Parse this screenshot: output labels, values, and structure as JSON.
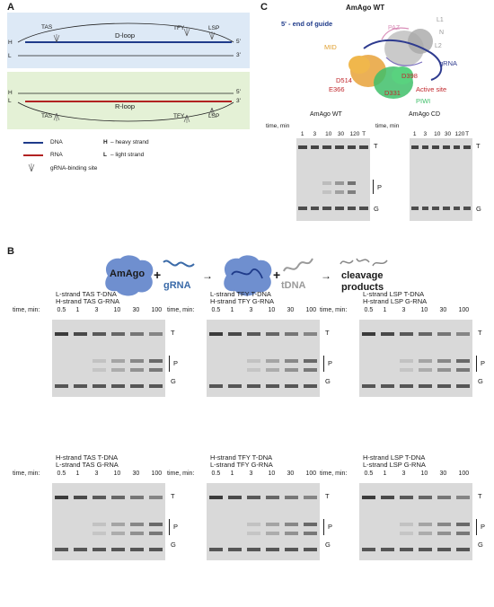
{
  "panels": {
    "A": "A",
    "B": "B",
    "C": "C"
  },
  "panel_a": {
    "top": {
      "strand_h": "H",
      "strand_l": "L",
      "end_5": "5'",
      "end_3": "3'",
      "loop_label": "D-loop",
      "sites": [
        "TAS",
        "TFY",
        "LSP"
      ]
    },
    "bottom": {
      "strand_h": "H",
      "strand_l": "L",
      "end_5": "5'",
      "end_3": "3'",
      "loop_label": "R-loop",
      "sites": [
        "TAS",
        "TFY",
        "LSP"
      ]
    },
    "legend": {
      "dna": "DNA",
      "rna": "RNA",
      "site": "gRNA-binding site",
      "h_def_letter": "H",
      "h_def_text": "– heavy strand",
      "l_def_letter": "L",
      "l_def_text": "– light strand"
    },
    "colors": {
      "dna": "#1f3b8a",
      "rna": "#b22222",
      "top_bg": "#dde9f6",
      "bottom_bg": "#e4f1d6"
    }
  },
  "panel_c": {
    "structure_title": "AmAgo WT",
    "guide_end": "5' - end of guide",
    "domains": {
      "mid": "MID",
      "paz": "PAZ",
      "l1": "L1",
      "n": "N",
      "l2": "L2",
      "piwi": "PIWI",
      "grna": "gRNA"
    },
    "residues": [
      "D398",
      "D514",
      "E366",
      "D331"
    ],
    "active_site": "Active site",
    "gels": [
      {
        "title": "AmAgo WT",
        "time_label": "time, min",
        "times": [
          "1",
          "3",
          "10",
          "30",
          "120",
          "T"
        ]
      },
      {
        "title": "AmAgo CD",
        "time_label": "time, min",
        "times": [
          "1",
          "3",
          "10",
          "30",
          "120",
          "T"
        ]
      }
    ],
    "band_labels": {
      "t": "T",
      "p": "P",
      "g": "G"
    }
  },
  "panel_b": {
    "scheme": {
      "protein": "AmAgo",
      "plus1": "+",
      "guide": "gRNA",
      "arrow1": "→",
      "plus2": "+",
      "target": "tDNA",
      "arrow2": "→",
      "products_line1": "cleavage",
      "products_line2": "products"
    },
    "time_label": "time, min:",
    "times": [
      "0.5",
      "1",
      "3",
      "10",
      "30",
      "100"
    ],
    "band_labels": {
      "t": "T",
      "p": "P",
      "g": "G"
    },
    "gels": [
      {
        "line1": "L-strand TAS T-DNA",
        "line2": "H-strand TAS G-RNA"
      },
      {
        "line1": "L-strand TFY T-DNA",
        "line2": "H-strand TFY G-RNA"
      },
      {
        "line1": "L-strand LSP T-DNA",
        "line2": "H-strand LSP G-RNA"
      },
      {
        "line1": "H-strand TAS T-DNA",
        "line2": "L-strand TAS G-RNA"
      },
      {
        "line1": "H-strand TFY T-DNA",
        "line2": "L-strand TFY G-RNA"
      },
      {
        "line1": "H-strand LSP T-DNA",
        "line2": "L-strand LSP G-RNA"
      }
    ],
    "colors": {
      "protein": "#6f8fcf",
      "guide_text": "#3a6aa8",
      "target_text": "#9a9a9a"
    }
  }
}
